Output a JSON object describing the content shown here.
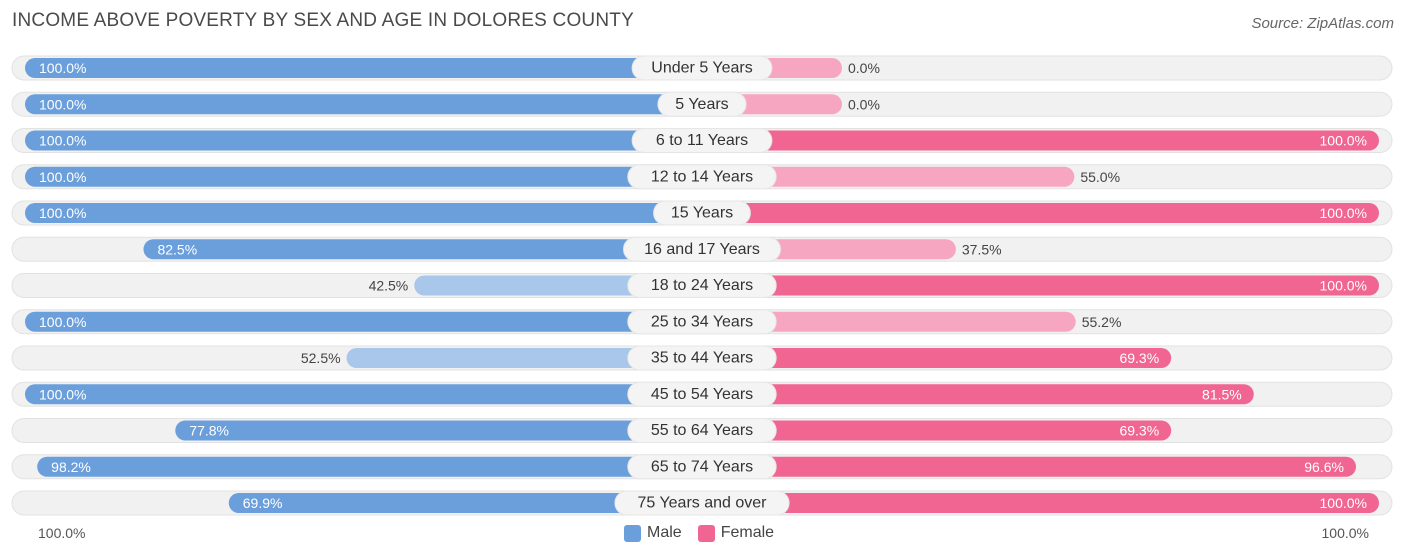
{
  "title": "INCOME ABOVE POVERTY BY SEX AND AGE IN DOLORES COUNTY",
  "source": "Source: ZipAtlas.com",
  "colors": {
    "male": "#6a9fdc",
    "male_light": "#a9c7ea",
    "female": "#f06592",
    "female_light": "#f7a6c1",
    "track": "#f1f1f1"
  },
  "legend": {
    "male": "Male",
    "female": "Female"
  },
  "axis": {
    "left_label": "100.0%",
    "right_label": "100.0%"
  },
  "chart_data": {
    "type": "bar",
    "orientation": "diverging-horizontal",
    "title": "INCOME ABOVE POVERTY BY SEX AND AGE IN DOLORES COUNTY",
    "xlim": [
      0,
      100
    ],
    "categories": [
      "Under 5 Years",
      "5 Years",
      "6 to 11 Years",
      "12 to 14 Years",
      "15 Years",
      "16 and 17 Years",
      "18 to 24 Years",
      "25 to 34 Years",
      "35 to 44 Years",
      "45 to 54 Years",
      "55 to 64 Years",
      "65 to 74 Years",
      "75 Years and over"
    ],
    "series": [
      {
        "name": "Male",
        "values": [
          100.0,
          100.0,
          100.0,
          100.0,
          100.0,
          82.5,
          42.5,
          100.0,
          52.5,
          100.0,
          77.8,
          98.2,
          69.9
        ],
        "labels": [
          "100.0%",
          "100.0%",
          "100.0%",
          "100.0%",
          "100.0%",
          "82.5%",
          "42.5%",
          "100.0%",
          "52.5%",
          "100.0%",
          "77.8%",
          "98.2%",
          "69.9%"
        ]
      },
      {
        "name": "Female",
        "values": [
          0.0,
          0.0,
          100.0,
          55.0,
          100.0,
          37.5,
          100.0,
          55.2,
          69.3,
          81.5,
          69.3,
          96.6,
          100.0
        ],
        "labels": [
          "0.0%",
          "0.0%",
          "100.0%",
          "55.0%",
          "100.0%",
          "37.5%",
          "100.0%",
          "55.2%",
          "69.3%",
          "81.5%",
          "69.3%",
          "96.6%",
          "100.0%"
        ]
      }
    ]
  }
}
